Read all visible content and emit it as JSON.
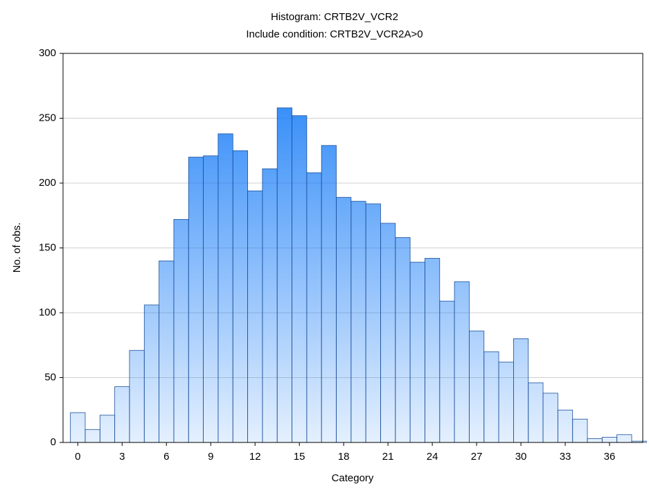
{
  "chart_data": {
    "type": "histogram",
    "title": "Histogram: CRTB2V_VCR2",
    "subtitle": "Include condition: CRTB2V_VCR2A>0",
    "x_label": "Category",
    "y_label": "No. of obs.",
    "bins": [
      -0.5,
      0.5,
      1.5,
      2.5,
      3.5,
      4.5,
      5.5,
      6.5,
      7.5,
      8.5,
      9.5,
      10.5,
      11.5,
      12.5,
      13.5,
      14.5,
      15.5,
      16.5,
      17.5,
      18.5,
      19.5,
      20.5,
      21.5,
      22.5,
      23.5,
      24.5,
      25.5,
      26.5,
      27.5,
      28.5,
      29.5,
      30.5,
      31.5,
      32.5,
      33.5,
      34.5,
      35.5,
      36.5,
      37.5,
      38.5
    ],
    "values": [
      23,
      10,
      21,
      43,
      71,
      106,
      140,
      172,
      220,
      221,
      238,
      225,
      194,
      211,
      258,
      252,
      208,
      229,
      189,
      186,
      184,
      169,
      158,
      139,
      142,
      109,
      124,
      86,
      70,
      62,
      80,
      46,
      38,
      25,
      18,
      3,
      4,
      6,
      1
    ],
    "color": "#1e80f8",
    "xlim": [
      -1,
      38.25
    ],
    "xticks": [
      0,
      3,
      6,
      9,
      12,
      15,
      18,
      21,
      24,
      27,
      30,
      33,
      36
    ],
    "ylim": [
      0,
      300
    ],
    "yticks": [
      0,
      50,
      100,
      150,
      200,
      250,
      300
    ],
    "grid": true
  }
}
